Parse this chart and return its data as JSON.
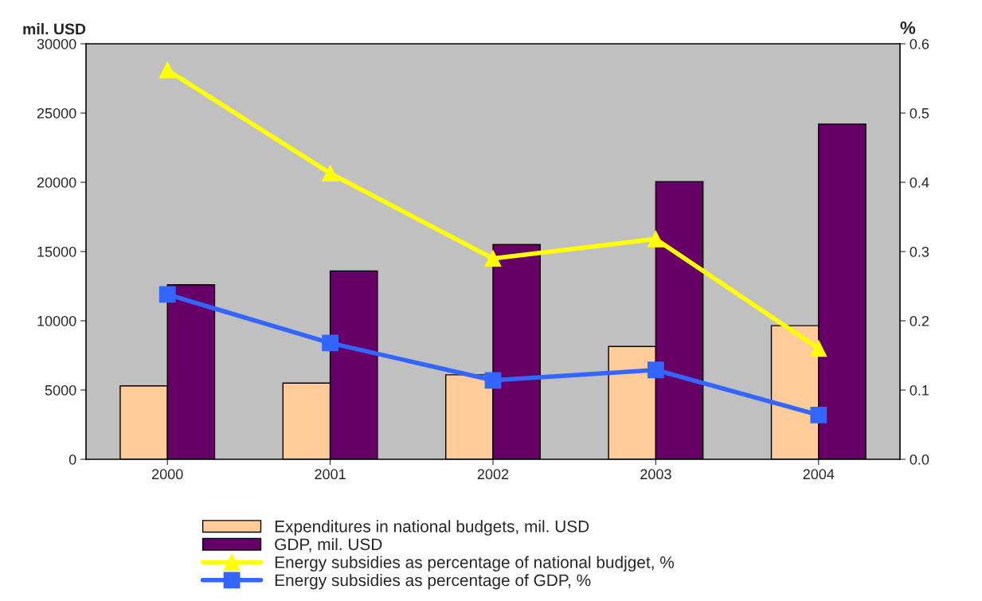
{
  "chart_data": {
    "type": "bar",
    "ylabel": "mil. USD",
    "y2label": "%",
    "categories": [
      "2000",
      "2001",
      "2002",
      "2003",
      "2004"
    ],
    "series": [
      {
        "name": "Expenditures in national budgets, mil. USD",
        "color": "#ffcc99",
        "values": [
          5300,
          5500,
          6100,
          8150,
          9650
        ]
      },
      {
        "name": "GDP, mil. USD",
        "color": "#660066",
        "values": [
          12600,
          13600,
          15500,
          20050,
          24200
        ]
      },
      {
        "name": "Energy subsidies as percentage of national budjget, %",
        "type": "line",
        "axis": "y2",
        "marker": "triangle",
        "color": "#ffff00",
        "values": [
          0.562,
          0.413,
          0.29,
          0.318,
          0.16
        ]
      },
      {
        "name": "Energy subsidies as percentage of GDP, %",
        "type": "line",
        "axis": "y2",
        "marker": "square",
        "color": "#3366ff",
        "values": [
          0.238,
          0.168,
          0.114,
          0.129,
          0.064
        ]
      }
    ],
    "ylim": [
      0,
      30000
    ],
    "yticks": [
      0,
      5000,
      10000,
      15000,
      20000,
      25000,
      30000
    ],
    "y2lim": [
      0,
      0.6
    ],
    "y2ticks": [
      {
        "value": 0,
        "label": "0.0"
      },
      0.1,
      0.2,
      0.3,
      0.4,
      0.5,
      0.6
    ],
    "grid": false,
    "legend": "bottom"
  }
}
